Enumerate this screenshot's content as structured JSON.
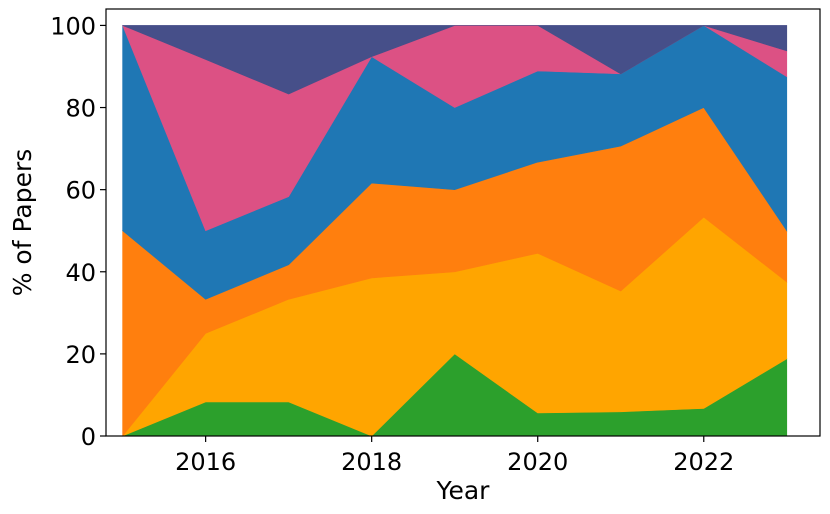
{
  "chart_data": {
    "type": "area",
    "stacked": true,
    "xlabel": "Year",
    "ylabel": "% of Papers",
    "xlim": [
      2014.8,
      2023.4
    ],
    "ylim": [
      0,
      104
    ],
    "x": [
      2015,
      2016,
      2017,
      2018,
      2019,
      2020,
      2021,
      2022,
      2023
    ],
    "x_ticks": [
      2016,
      2018,
      2020,
      2022
    ],
    "y_ticks": [
      0,
      20,
      40,
      60,
      80,
      100
    ],
    "grid": false,
    "legend": "none",
    "series": [
      {
        "color": "#2ca02c",
        "values": [
          0,
          8.3,
          8.3,
          0,
          20,
          5.6,
          5.9,
          6.7,
          18.8
        ]
      },
      {
        "color": "#ffa500",
        "values": [
          0,
          16.7,
          25,
          38.5,
          20,
          38.9,
          29.4,
          46.6,
          18.7
        ]
      },
      {
        "color": "#ff7f0e",
        "values": [
          50,
          8.3,
          8.4,
          23.1,
          20,
          22.2,
          35.3,
          26.7,
          12.5
        ]
      },
      {
        "color": "#1f77b4",
        "values": [
          50,
          16.7,
          16.6,
          30.8,
          20,
          22.2,
          17.6,
          20,
          37.5
        ]
      },
      {
        "color": "#dc5184",
        "values": [
          0,
          41.7,
          25,
          0,
          20,
          11.1,
          0,
          0,
          6.3
        ]
      },
      {
        "color": "#464f89",
        "values": [
          0,
          8.3,
          16.7,
          7.6,
          0,
          0,
          11.8,
          0,
          6.2
        ]
      }
    ]
  }
}
